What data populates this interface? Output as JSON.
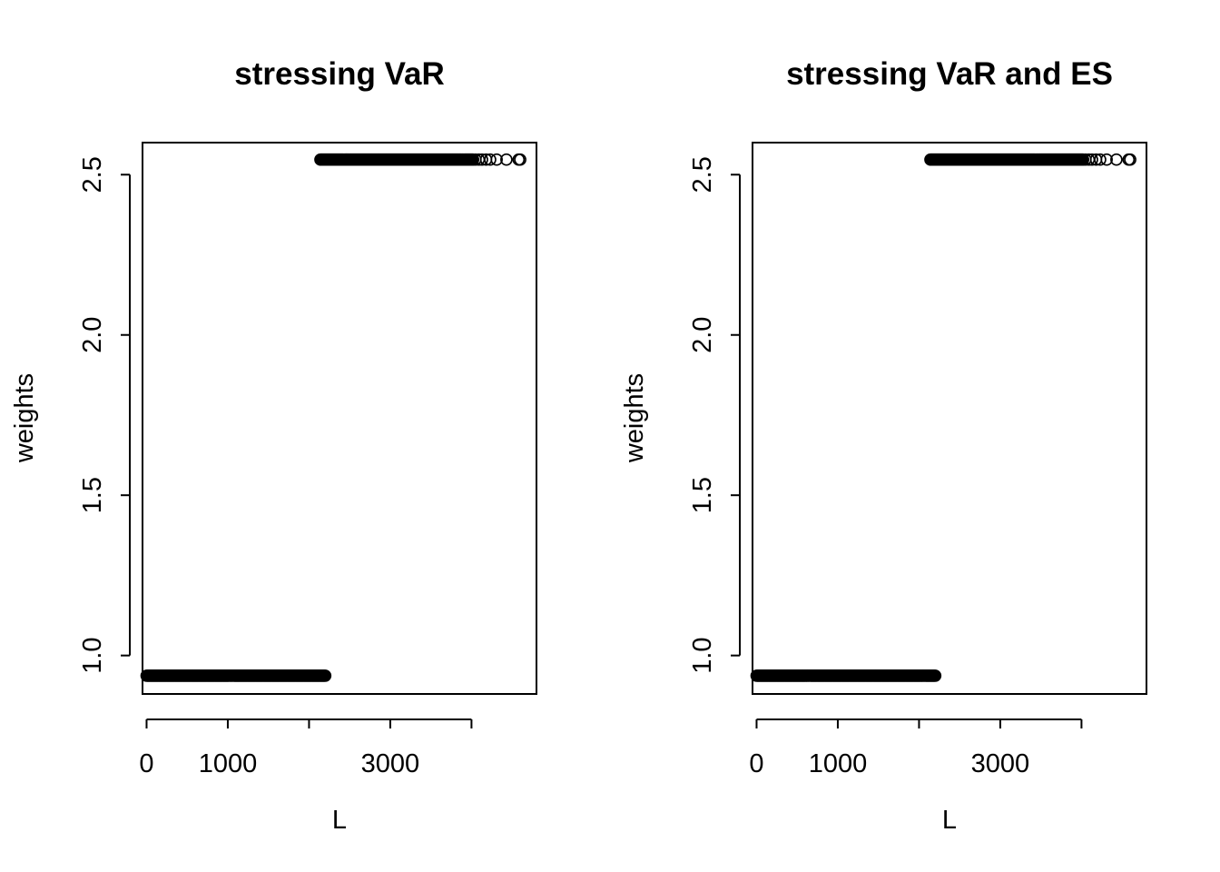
{
  "chart_data": [
    {
      "type": "scatter",
      "title": "stressing VaR",
      "xlabel": "L",
      "ylabel": "weights",
      "xlim": [
        -50,
        4800
      ],
      "ylim": [
        0.88,
        2.6
      ],
      "xticks": [
        0,
        1000,
        2000,
        3000,
        4000,
        5000
      ],
      "xtick_labels": [
        "0",
        "1000",
        "",
        "3000",
        "",
        ""
      ],
      "yticks": [
        1.0,
        1.5,
        2.0,
        2.5
      ],
      "ytick_labels": [
        "1.0",
        "1.5",
        "2.0",
        "2.5"
      ],
      "series": [
        {
          "x_start": 0,
          "x_end": 2200,
          "count": 220,
          "y": 0.937
        },
        {
          "x_start": 2140,
          "x_end": 4020,
          "count": 190,
          "y": 2.547
        },
        {
          "x": [
            4050,
            4090,
            4130,
            4180,
            4230,
            4310,
            4430,
            4580,
            4600
          ],
          "y": 2.547
        }
      ]
    },
    {
      "type": "scatter",
      "title": "stressing VaR and ES",
      "xlabel": "L",
      "ylabel": "weights",
      "xlim": [
        -50,
        4800
      ],
      "ylim": [
        0.88,
        2.6
      ],
      "xticks": [
        0,
        1000,
        2000,
        3000,
        4000,
        5000
      ],
      "xtick_labels": [
        "0",
        "1000",
        "",
        "3000",
        "",
        ""
      ],
      "yticks": [
        1.0,
        1.5,
        2.0,
        2.5
      ],
      "ytick_labels": [
        "1.0",
        "1.5",
        "2.0",
        "2.5"
      ],
      "series": [
        {
          "x_start": 0,
          "x_end": 2200,
          "count": 220,
          "y": 0.937
        },
        {
          "x_start": 2140,
          "x_end": 4020,
          "count": 190,
          "y": 2.547
        },
        {
          "x": [
            4050,
            4090,
            4130,
            4180,
            4230,
            4310,
            4430,
            4580,
            4600
          ],
          "y": 2.547
        }
      ]
    }
  ]
}
